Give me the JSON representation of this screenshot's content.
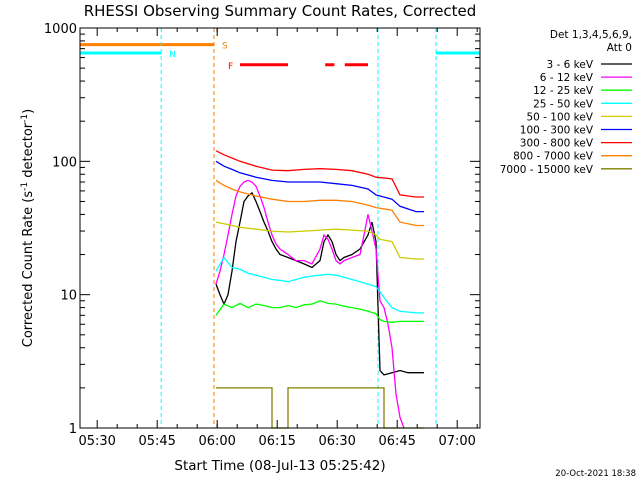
{
  "chart_data": {
    "type": "line",
    "title": "RHESSI Observing Summary Count Rates, Corrected",
    "xlabel": "Start Time (08-Jul-13 05:25:42)",
    "ylabel_main": "Corrected Count Rate (s",
    "ylabel_sup1": "-1",
    "ylabel_mid": " detector",
    "ylabel_sup2": "-1",
    "ylabel_end": ")",
    "y_scale": "log",
    "ylim": [
      1,
      1000
    ],
    "y_ticks": [
      {
        "value": 1,
        "label": "1"
      },
      {
        "value": 10,
        "label": "10"
      },
      {
        "value": 100,
        "label": "100"
      },
      {
        "value": 1000,
        "label": "1000"
      }
    ],
    "xlim_min": [
      0,
      100
    ],
    "x_ticks": [
      {
        "min": 4.3,
        "label": "05:30"
      },
      {
        "min": 19.3,
        "label": "05:45"
      },
      {
        "min": 34.3,
        "label": "06:00"
      },
      {
        "min": 49.3,
        "label": "06:15"
      },
      {
        "min": 64.3,
        "label": "06:30"
      },
      {
        "min": 79.3,
        "label": "06:45"
      },
      {
        "min": 94.3,
        "label": "07:00"
      }
    ],
    "legend_title_1": "Det 1,3,4,5,6,9,",
    "legend_title_2": "Att 0",
    "legend_position": "top-right",
    "series": [
      {
        "name": "3 - 6 keV",
        "color": "#000000",
        "points": [
          [
            34,
            12
          ],
          [
            35,
            10
          ],
          [
            36,
            8.5
          ],
          [
            37,
            10
          ],
          [
            38,
            15
          ],
          [
            39,
            25
          ],
          [
            40,
            35
          ],
          [
            41,
            50
          ],
          [
            42,
            55
          ],
          [
            43,
            58
          ],
          [
            44,
            50
          ],
          [
            45,
            42
          ],
          [
            46,
            35
          ],
          [
            47,
            30
          ],
          [
            48,
            25
          ],
          [
            49,
            22
          ],
          [
            50,
            20
          ],
          [
            52,
            19
          ],
          [
            54,
            18
          ],
          [
            56,
            17
          ],
          [
            58,
            16
          ],
          [
            60,
            18
          ],
          [
            61,
            25
          ],
          [
            62,
            28
          ],
          [
            63,
            25
          ],
          [
            64,
            20
          ],
          [
            65,
            18
          ],
          [
            66,
            19
          ],
          [
            68,
            20
          ],
          [
            70,
            22
          ],
          [
            72,
            28
          ],
          [
            73,
            35
          ],
          [
            74,
            25
          ],
          [
            75,
            2.7
          ],
          [
            76,
            2.5
          ],
          [
            78,
            2.6
          ],
          [
            80,
            2.7
          ],
          [
            82,
            2.6
          ],
          [
            84,
            2.6
          ],
          [
            86,
            2.6
          ]
        ]
      },
      {
        "name": "6 - 12 keV",
        "color": "#ff00ff",
        "points": [
          [
            34,
            12
          ],
          [
            35,
            15
          ],
          [
            36,
            20
          ],
          [
            37,
            28
          ],
          [
            38,
            40
          ],
          [
            39,
            55
          ],
          [
            40,
            65
          ],
          [
            41,
            70
          ],
          [
            42,
            72
          ],
          [
            43,
            70
          ],
          [
            44,
            65
          ],
          [
            45,
            55
          ],
          [
            46,
            45
          ],
          [
            47,
            35
          ],
          [
            48,
            28
          ],
          [
            49,
            24
          ],
          [
            50,
            22
          ],
          [
            52,
            20
          ],
          [
            54,
            18
          ],
          [
            56,
            18
          ],
          [
            58,
            17
          ],
          [
            60,
            22
          ],
          [
            61,
            28
          ],
          [
            62,
            26
          ],
          [
            63,
            22
          ],
          [
            64,
            18
          ],
          [
            65,
            17
          ],
          [
            66,
            18
          ],
          [
            68,
            19
          ],
          [
            70,
            20
          ],
          [
            71,
            28
          ],
          [
            72,
            40
          ],
          [
            73,
            30
          ],
          [
            74,
            22
          ],
          [
            75,
            9
          ],
          [
            76,
            8
          ],
          [
            77,
            6
          ],
          [
            78,
            4
          ],
          [
            79,
            1.8
          ],
          [
            80,
            1.2
          ],
          [
            81,
            1.0
          ]
        ]
      },
      {
        "name": "12 - 25 keV",
        "color": "#00ff00",
        "points": [
          [
            34,
            7
          ],
          [
            36,
            8.5
          ],
          [
            38,
            8
          ],
          [
            40,
            8.6
          ],
          [
            42,
            8
          ],
          [
            44,
            8.5
          ],
          [
            46,
            8.3
          ],
          [
            48,
            8
          ],
          [
            50,
            8
          ],
          [
            52,
            8.3
          ],
          [
            54,
            8
          ],
          [
            56,
            8.4
          ],
          [
            58,
            8.5
          ],
          [
            60,
            9
          ],
          [
            62,
            8.6
          ],
          [
            64,
            8.5
          ],
          [
            66,
            8.2
          ],
          [
            68,
            8
          ],
          [
            70,
            7.8
          ],
          [
            72,
            7.5
          ],
          [
            74,
            7.2
          ],
          [
            75,
            6.5
          ],
          [
            76,
            6.3
          ],
          [
            78,
            6.2
          ],
          [
            80,
            6.3
          ],
          [
            84,
            6.3
          ],
          [
            86,
            6.3
          ]
        ]
      },
      {
        "name": "25 - 50 keV",
        "color": "#00ffff",
        "points": [
          [
            34,
            15
          ],
          [
            36,
            19
          ],
          [
            38,
            16
          ],
          [
            40,
            15.5
          ],
          [
            42,
            14.5
          ],
          [
            44,
            14
          ],
          [
            46,
            13.5
          ],
          [
            48,
            13
          ],
          [
            50,
            12.8
          ],
          [
            52,
            12.5
          ],
          [
            54,
            13
          ],
          [
            56,
            13.5
          ],
          [
            58,
            13.8
          ],
          [
            60,
            14
          ],
          [
            62,
            14.2
          ],
          [
            64,
            14
          ],
          [
            66,
            13.5
          ],
          [
            68,
            13
          ],
          [
            70,
            12.5
          ],
          [
            72,
            12
          ],
          [
            74,
            11.5
          ],
          [
            75,
            10.5
          ],
          [
            76,
            9.5
          ],
          [
            78,
            8
          ],
          [
            80,
            7.5
          ],
          [
            84,
            7.3
          ],
          [
            86,
            7.3
          ]
        ]
      },
      {
        "name": "50 - 100 keV",
        "color": "#cccc00",
        "points": [
          [
            34,
            35
          ],
          [
            36,
            34
          ],
          [
            38,
            33
          ],
          [
            40,
            32
          ],
          [
            44,
            31
          ],
          [
            48,
            30
          ],
          [
            52,
            29.5
          ],
          [
            56,
            30
          ],
          [
            60,
            30.5
          ],
          [
            64,
            31
          ],
          [
            68,
            30.5
          ],
          [
            72,
            30
          ],
          [
            74,
            28
          ],
          [
            75,
            26
          ],
          [
            78,
            25
          ],
          [
            80,
            19
          ],
          [
            84,
            18.5
          ],
          [
            86,
            18.5
          ]
        ]
      },
      {
        "name": "100 - 300 keV",
        "color": "#0000ff",
        "points": [
          [
            34,
            100
          ],
          [
            36,
            92
          ],
          [
            38,
            87
          ],
          [
            40,
            82
          ],
          [
            44,
            76
          ],
          [
            48,
            72
          ],
          [
            52,
            70
          ],
          [
            56,
            70
          ],
          [
            60,
            70
          ],
          [
            64,
            68
          ],
          [
            68,
            66
          ],
          [
            72,
            62
          ],
          [
            74,
            56
          ],
          [
            78,
            52
          ],
          [
            80,
            46
          ],
          [
            84,
            42
          ],
          [
            86,
            42
          ]
        ]
      },
      {
        "name": "300 - 800 keV",
        "color": "#ff0000",
        "points": [
          [
            34,
            120
          ],
          [
            36,
            112
          ],
          [
            38,
            106
          ],
          [
            40,
            100
          ],
          [
            44,
            92
          ],
          [
            48,
            86
          ],
          [
            52,
            85
          ],
          [
            56,
            87
          ],
          [
            60,
            88
          ],
          [
            64,
            87
          ],
          [
            68,
            85
          ],
          [
            72,
            80
          ],
          [
            74,
            76
          ],
          [
            78,
            74
          ],
          [
            80,
            56
          ],
          [
            84,
            54
          ],
          [
            86,
            54
          ]
        ]
      },
      {
        "name": "800 - 7000 keV",
        "color": "#ff7f00",
        "points": [
          [
            34,
            72
          ],
          [
            36,
            66
          ],
          [
            38,
            62
          ],
          [
            40,
            59
          ],
          [
            44,
            55
          ],
          [
            48,
            52
          ],
          [
            52,
            50
          ],
          [
            56,
            50
          ],
          [
            60,
            51
          ],
          [
            64,
            51
          ],
          [
            68,
            50
          ],
          [
            72,
            47
          ],
          [
            74,
            45
          ],
          [
            78,
            43
          ],
          [
            80,
            35
          ],
          [
            84,
            33
          ],
          [
            86,
            33
          ]
        ]
      },
      {
        "name": "7000 - 15000 keV",
        "color": "#808000",
        "points": [
          [
            34,
            2
          ],
          [
            48,
            2
          ],
          [
            48.01,
            1
          ],
          [
            52,
            1
          ],
          [
            52.01,
            2
          ],
          [
            76,
            2
          ],
          [
            76.01,
            1
          ],
          [
            86,
            1
          ]
        ]
      }
    ],
    "top_flags": [
      {
        "label": "S",
        "color": "#ff7f00",
        "y": 750,
        "segments": [
          [
            0,
            33.5
          ]
        ]
      },
      {
        "label": "N",
        "color": "#00ffff",
        "y": 650,
        "segments": [
          [
            0,
            20.3
          ],
          [
            89,
            100
          ]
        ]
      },
      {
        "label": "F",
        "color": "#ff0000",
        "y": 530,
        "segments": [
          [
            40,
            52
          ],
          [
            61.3,
            63.6
          ],
          [
            66.2,
            72
          ]
        ]
      }
    ],
    "vlines": [
      {
        "min": 20.3,
        "color": "#00ffff"
      },
      {
        "min": 33.5,
        "color": "#ff7f00"
      },
      {
        "min": 74.5,
        "color": "#00ffff"
      },
      {
        "min": 89,
        "color": "#00ffff"
      }
    ]
  },
  "footer": {
    "timestamp": "20-Oct-2021 18:38"
  }
}
